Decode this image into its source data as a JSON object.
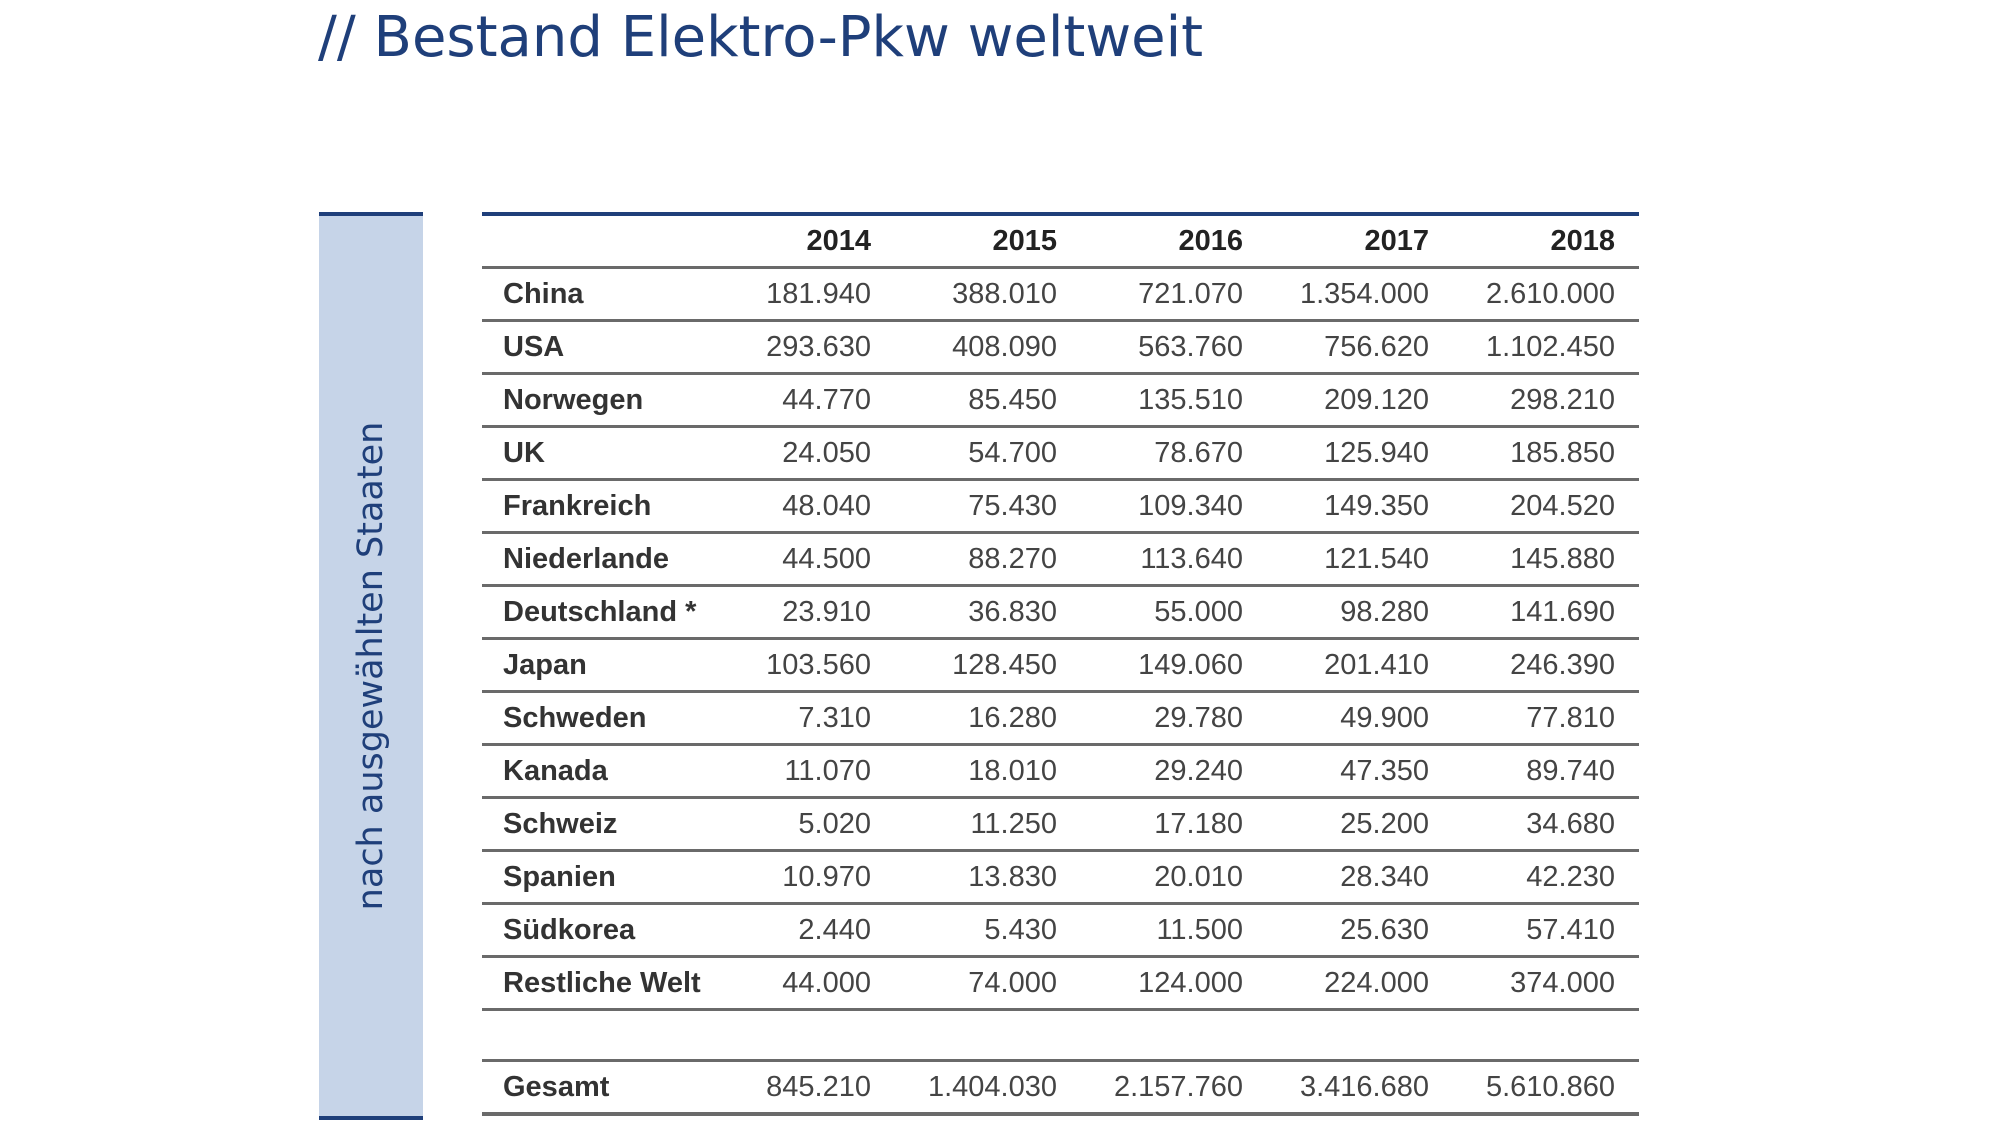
{
  "title": "// Bestand Elektro-Pkw weltweit",
  "side_label": "nach ausgewählten Staaten",
  "table": {
    "corner": "",
    "years": [
      "2014",
      "2015",
      "2016",
      "2017",
      "2018"
    ],
    "rows": [
      {
        "country": "China",
        "values": [
          "181.940",
          "388.010",
          "721.070",
          "1.354.000",
          "2.610.000"
        ]
      },
      {
        "country": "USA",
        "values": [
          "293.630",
          "408.090",
          "563.760",
          "756.620",
          "1.102.450"
        ]
      },
      {
        "country": "Norwegen",
        "values": [
          "44.770",
          "85.450",
          "135.510",
          "209.120",
          "298.210"
        ]
      },
      {
        "country": "UK",
        "values": [
          "24.050",
          "54.700",
          "78.670",
          "125.940",
          "185.850"
        ]
      },
      {
        "country": "Frankreich",
        "values": [
          "48.040",
          "75.430",
          "109.340",
          "149.350",
          "204.520"
        ]
      },
      {
        "country": "Niederlande",
        "values": [
          "44.500",
          "88.270",
          "113.640",
          "121.540",
          "145.880"
        ]
      },
      {
        "country": "Deutschland *",
        "values": [
          "23.910",
          "36.830",
          "55.000",
          "98.280",
          "141.690"
        ]
      },
      {
        "country": "Japan",
        "values": [
          "103.560",
          "128.450",
          "149.060",
          "201.410",
          "246.390"
        ]
      },
      {
        "country": "Schweden",
        "values": [
          "7.310",
          "16.280",
          "29.780",
          "49.900",
          "77.810"
        ]
      },
      {
        "country": "Kanada",
        "values": [
          "11.070",
          "18.010",
          "29.240",
          "47.350",
          "89.740"
        ]
      },
      {
        "country": "Schweiz",
        "values": [
          "5.020",
          "11.250",
          "17.180",
          "25.200",
          "34.680"
        ]
      },
      {
        "country": "Spanien",
        "values": [
          "10.970",
          "13.830",
          "20.010",
          "28.340",
          "42.230"
        ]
      },
      {
        "country": "Südkorea",
        "values": [
          "2.440",
          "5.430",
          "11.500",
          "25.630",
          "57.410"
        ]
      },
      {
        "country": "Restliche Welt",
        "values": [
          "44.000",
          "74.000",
          "124.000",
          "224.000",
          "374.000"
        ]
      }
    ],
    "total": {
      "label": "Gesamt",
      "values": [
        "845.210",
        "1.404.030",
        "2.157.760",
        "3.416.680",
        "5.610.860"
      ]
    }
  },
  "colors": {
    "title": "#1f3f7a",
    "side_panel": "#c6d4e8",
    "rule_accent": "#1f3f7a",
    "rule_row": "#6a6a6a"
  }
}
